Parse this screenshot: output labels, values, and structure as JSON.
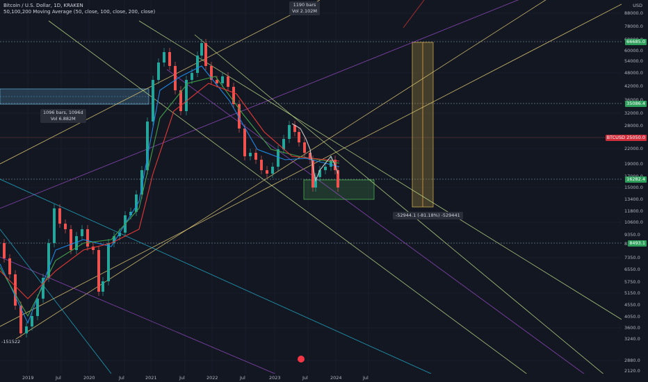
{
  "legend": {
    "symbol_line": "Bitcoin / U.S. Dollar, 1D, KRAKEN",
    "indicator_line": "50,100,200 Moving Average (50, close, 100, close, 200, close)"
  },
  "price_axis": {
    "currency": "USD",
    "ticks": [
      "88000.0",
      "78000.0",
      "68000.0",
      "60000.0",
      "54000.0",
      "48000.0",
      "42000.0",
      "36000.0",
      "32000.0",
      "28000.0",
      "25000.0",
      "22000.0",
      "19000.0",
      "17000.0",
      "15000.0",
      "13400.0",
      "11800.0",
      "10600.0",
      "9350.0",
      "8300.0",
      "7350.0",
      "6550.0",
      "5750.0",
      "5150.0",
      "4550.0",
      "4050.0",
      "3600.0",
      "3240.0",
      "2880.0",
      "2120.0"
    ],
    "tags": [
      {
        "label": "66685.0",
        "color": "#2e9e5b"
      },
      {
        "label": "35086.4",
        "color": "#2e9e5b"
      },
      {
        "label": "BTCUSD 25050.0",
        "color": "#d12e3c"
      },
      {
        "label": "16282.4",
        "color": "#2e9e5b"
      },
      {
        "label": "8493.1",
        "color": "#2e9e5b"
      }
    ]
  },
  "time_axis": {
    "labels": [
      "2019",
      "Jul",
      "2020",
      "Jul",
      "2021",
      "Jul",
      "2022",
      "Jul",
      "2023",
      "Jul",
      "2024",
      "Jul"
    ]
  },
  "annotations": {
    "bars_top": {
      "line1": "1190 bars",
      "line2": "Vol 2.102M"
    },
    "bars_left": {
      "line1": "1096 bars, 1096d",
      "line2": "Vol 6.882M"
    },
    "measure": {
      "text": "-52944.1 (-81.18%) -529441"
    },
    "left_tag": "-151522"
  },
  "colors": {
    "background": "#131722",
    "green": "#26a69a",
    "red": "#ef5350",
    "ma50": "#1e88e5",
    "ma100": "#43a047",
    "ma200": "#e53935",
    "channel_yellow": "#f0d77a",
    "channel_purple": "#9c4dcc",
    "channel_green": "#c6e48b",
    "channel_cyan": "#22b8d6"
  }
}
